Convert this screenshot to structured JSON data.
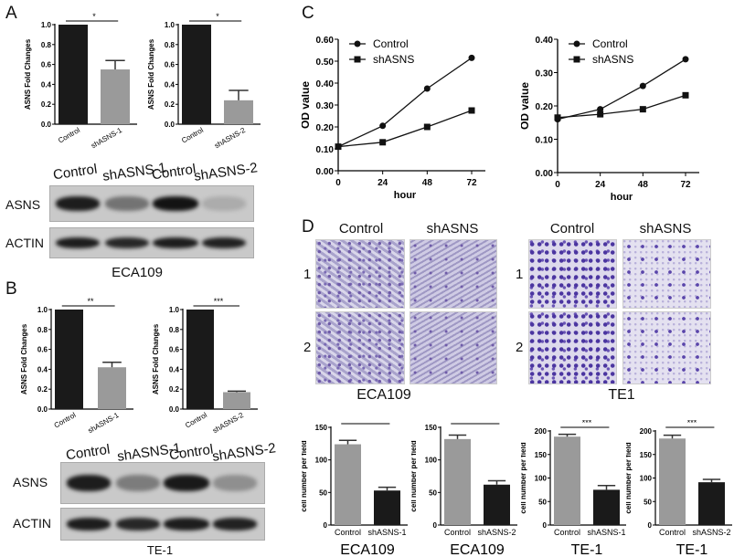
{
  "panels": {
    "a": "A",
    "b": "B",
    "c": "C",
    "d": "D"
  },
  "blot_a": {
    "lanes": [
      "Control",
      "shASNS-1",
      "Control",
      "shASNS-2"
    ],
    "rows": [
      "ASNS",
      "ACTIN"
    ],
    "caption": "ECA109"
  },
  "blot_b": {
    "lanes": [
      "Control",
      "shASNS-1",
      "Control",
      "shASNS-2"
    ],
    "rows": [
      "ASNS",
      "ACTIN"
    ],
    "caption": "TE-1"
  },
  "micro_eca": {
    "cols": [
      "Control",
      "shASNS"
    ],
    "rows": [
      "1",
      "2"
    ],
    "caption": "ECA109"
  },
  "micro_te": {
    "cols": [
      "Control",
      "shASNS"
    ],
    "rows": [
      "1",
      "2"
    ],
    "caption": "TE1"
  },
  "colors": {
    "black_bar": "#1a1a1a",
    "gray_bar": "#9a9a9a"
  },
  "chart_data": [
    {
      "id": "a1",
      "type": "bar",
      "ylabel": "ASNS Fold Changes",
      "ylim": [
        0,
        1.0
      ],
      "yticks": [
        "0.0",
        "0.2",
        "0.4",
        "0.6",
        "0.8",
        "1.0"
      ],
      "categories": [
        "Control",
        "shASNS-1"
      ],
      "values": [
        1.0,
        0.55
      ],
      "errors": [
        0,
        0.09
      ],
      "bar_colors": [
        "#1a1a1a",
        "#9a9a9a"
      ],
      "significance": "*"
    },
    {
      "id": "a2",
      "type": "bar",
      "ylabel": "ASNS Fold Changes",
      "ylim": [
        0,
        1.0
      ],
      "yticks": [
        "0.0",
        "0.2",
        "0.4",
        "0.6",
        "0.8",
        "1.0"
      ],
      "categories": [
        "Control",
        "shASNS-2"
      ],
      "values": [
        1.0,
        0.24
      ],
      "errors": [
        0,
        0.1
      ],
      "bar_colors": [
        "#1a1a1a",
        "#9a9a9a"
      ],
      "significance": "*"
    },
    {
      "id": "b1",
      "type": "bar",
      "ylabel": "ASNS Fold Changes",
      "ylim": [
        0,
        1.0
      ],
      "yticks": [
        "0.0",
        "0.2",
        "0.4",
        "0.6",
        "0.8",
        "1.0"
      ],
      "categories": [
        "Control",
        "shASNS-1"
      ],
      "values": [
        1.0,
        0.42
      ],
      "errors": [
        0,
        0.05
      ],
      "bar_colors": [
        "#1a1a1a",
        "#9a9a9a"
      ],
      "significance": "**"
    },
    {
      "id": "b2",
      "type": "bar",
      "ylabel": "ASNS Fold Changes",
      "ylim": [
        0,
        1.0
      ],
      "yticks": [
        "0.0",
        "0.2",
        "0.4",
        "0.6",
        "0.8",
        "1.0"
      ],
      "categories": [
        "Control",
        "shASNS-2"
      ],
      "values": [
        1.0,
        0.17
      ],
      "errors": [
        0,
        0.01
      ],
      "bar_colors": [
        "#1a1a1a",
        "#9a9a9a"
      ],
      "significance": "***"
    },
    {
      "id": "c1",
      "type": "line",
      "xlabel": "hour",
      "ylabel": "OD value",
      "x": [
        0,
        24,
        48,
        72
      ],
      "xticks": [
        "0",
        "24",
        "48",
        "72"
      ],
      "ylim": [
        0,
        0.6
      ],
      "yticks": [
        "0.00",
        "0.10",
        "0.20",
        "0.30",
        "0.40",
        "0.50",
        "0.60"
      ],
      "legend": "top-left",
      "series": [
        {
          "name": "Control",
          "marker": "circle",
          "values": [
            0.11,
            0.205,
            0.375,
            0.515
          ]
        },
        {
          "name": "shASNS",
          "marker": "square",
          "values": [
            0.11,
            0.13,
            0.2,
            0.275
          ]
        }
      ]
    },
    {
      "id": "c2",
      "type": "line",
      "xlabel": "hour",
      "ylabel": "OD value",
      "x": [
        0,
        24,
        48,
        72
      ],
      "xticks": [
        "0",
        "24",
        "48",
        "72"
      ],
      "ylim": [
        0,
        0.4
      ],
      "yticks": [
        "0.00",
        "0.10",
        "0.20",
        "0.30",
        "0.40"
      ],
      "legend": "top-left",
      "series": [
        {
          "name": "Control",
          "marker": "circle",
          "values": [
            0.16,
            0.19,
            0.26,
            0.34
          ]
        },
        {
          "name": "shASNS",
          "marker": "square",
          "values": [
            0.165,
            0.175,
            0.19,
            0.232
          ]
        }
      ]
    },
    {
      "id": "d1",
      "type": "bar",
      "ylabel": "cell number per field",
      "group": "ECA109",
      "ylim": [
        0,
        150
      ],
      "yticks": [
        "0",
        "50",
        "100",
        "150"
      ],
      "categories": [
        "Control",
        "shASNS-1"
      ],
      "values": [
        124,
        53
      ],
      "errors": [
        6,
        5
      ],
      "bar_colors": [
        "#9a9a9a",
        "#1a1a1a"
      ],
      "significance": "**"
    },
    {
      "id": "d2",
      "type": "bar",
      "ylabel": "cell number per field",
      "group": "ECA109",
      "ylim": [
        0,
        150
      ],
      "yticks": [
        "0",
        "50",
        "100",
        "150"
      ],
      "categories": [
        "Control",
        "shASNS-2"
      ],
      "values": [
        132,
        62
      ],
      "errors": [
        6,
        6
      ],
      "bar_colors": [
        "#9a9a9a",
        "#1a1a1a"
      ],
      "significance": "**"
    },
    {
      "id": "d3",
      "type": "bar",
      "ylabel": "cell number per field",
      "group": "TE-1",
      "ylim": [
        0,
        200
      ],
      "yticks": [
        "0",
        "50",
        "100",
        "150",
        "200"
      ],
      "categories": [
        "Control",
        "shASNS-1"
      ],
      "values": [
        188,
        75
      ],
      "errors": [
        5,
        9
      ],
      "bar_colors": [
        "#9a9a9a",
        "#1a1a1a"
      ],
      "significance": "***"
    },
    {
      "id": "d4",
      "type": "bar",
      "ylabel": "cell number per field",
      "group": "TE-1",
      "ylim": [
        0,
        200
      ],
      "yticks": [
        "0",
        "50",
        "100",
        "150",
        "200"
      ],
      "categories": [
        "Control",
        "shASNS-2"
      ],
      "values": [
        184,
        91
      ],
      "errors": [
        7,
        6
      ],
      "bar_colors": [
        "#9a9a9a",
        "#1a1a1a"
      ],
      "significance": "***"
    }
  ]
}
